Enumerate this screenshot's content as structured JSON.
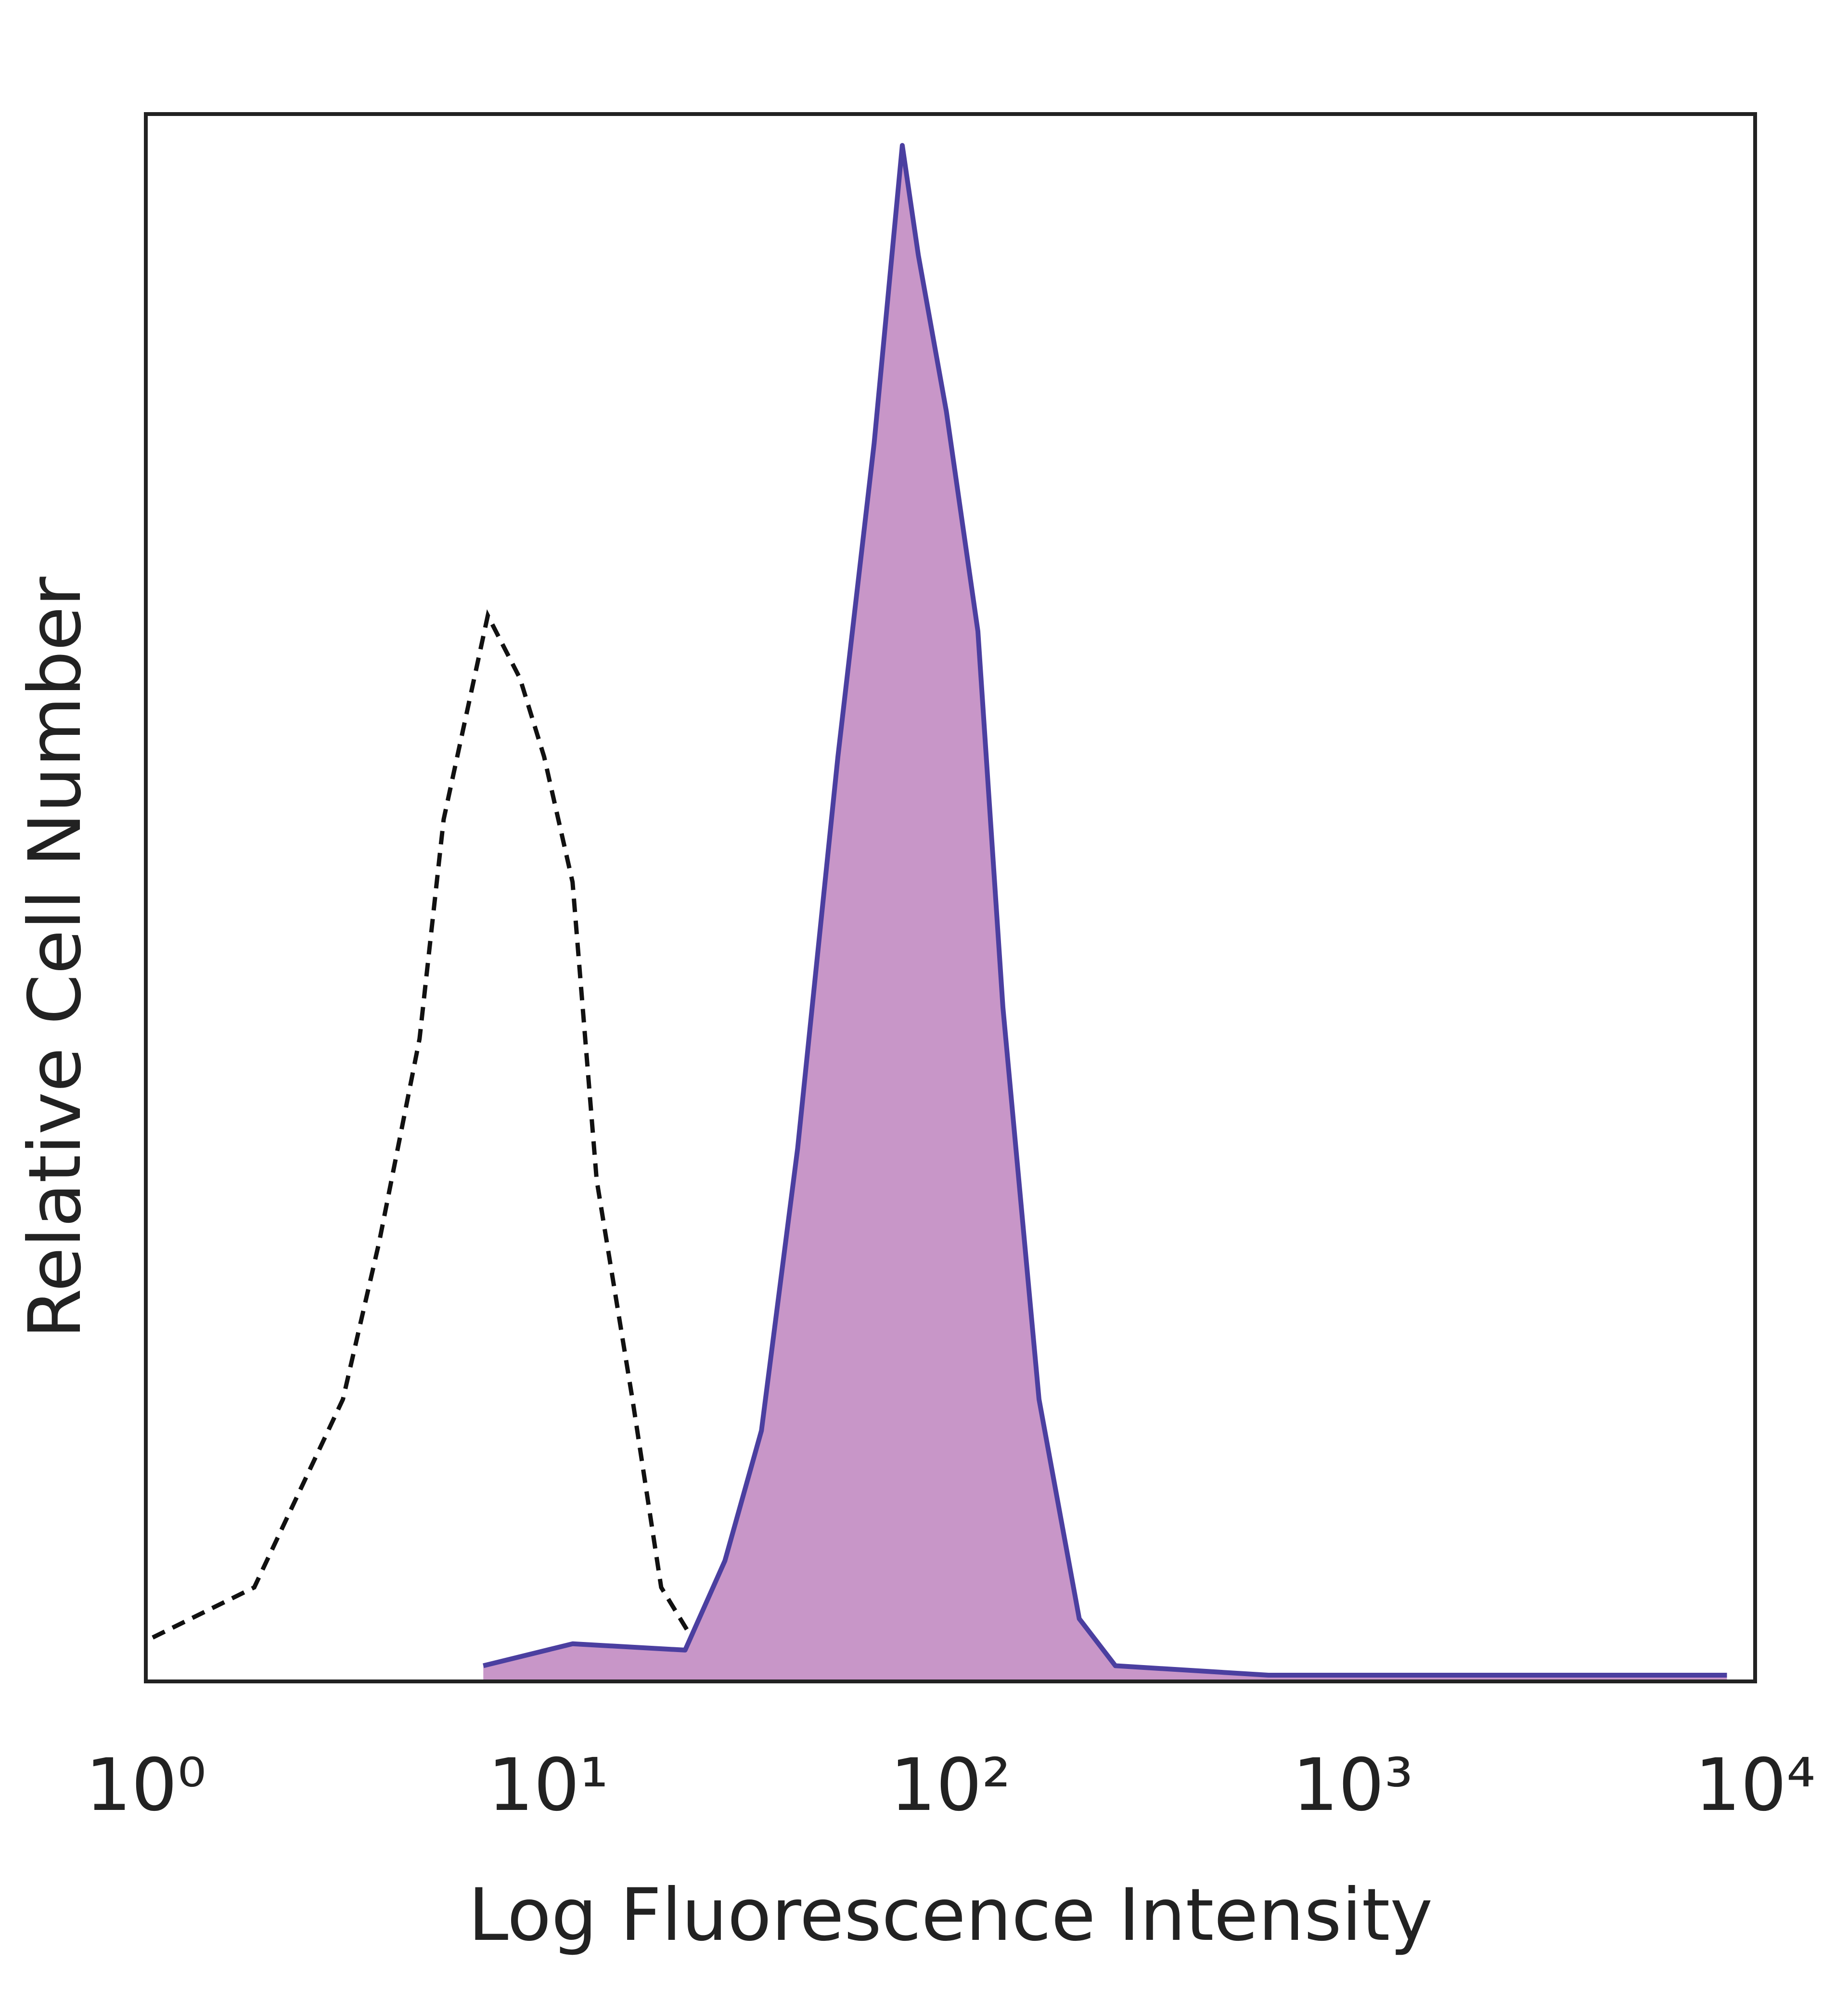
{
  "chart_data": {
    "type": "histogram-overlay",
    "xlabel": "Log Fluorescence Intensity",
    "ylabel": "Relative Cell Number",
    "xscale": "log",
    "xlim": [
      1,
      10000
    ],
    "ylim": [
      0,
      100
    ],
    "xticks": [
      {
        "value": 1,
        "label": "10⁰"
      },
      {
        "value": 10,
        "label": "10¹"
      },
      {
        "value": 100,
        "label": "10²"
      },
      {
        "value": 1000,
        "label": "10³"
      },
      {
        "value": 10000,
        "label": "10⁴"
      }
    ],
    "grid": false,
    "series": [
      {
        "style": "dashed",
        "color": "#111111",
        "x": [
          1.04,
          1.86,
          3.09,
          3.8,
          4.79,
          5.5,
          7.08,
          8.51,
          9.77,
          11.5,
          13.2,
          16.2,
          19.1,
          25.1,
          33.9
        ],
        "values": [
          2.8,
          6,
          18,
          28,
          41,
          55,
          68,
          64,
          59,
          51,
          32,
          18,
          6,
          1,
          0.4
        ]
      },
      {
        "style": "filled",
        "color": "#4b3fa0",
        "fill": "#c896c8",
        "x": [
          6.9,
          11.5,
          21.9,
          27.5,
          33.9,
          41.7,
          52.5,
          64.6,
          75.9,
          83.2,
          97.7,
          117,
          135,
          166,
          209,
          257,
          617,
          8511
        ],
        "values": [
          1,
          2.4,
          2,
          7.7,
          16,
          34,
          59,
          79,
          98,
          91,
          81,
          67,
          43,
          18,
          4,
          1,
          0.4,
          0.4
        ]
      }
    ]
  }
}
